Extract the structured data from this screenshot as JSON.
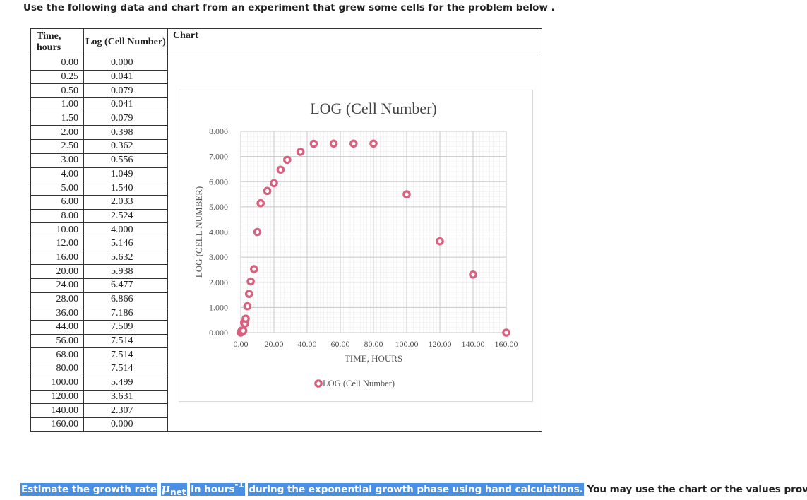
{
  "intro": "Use the following data and chart from an experiment that grew some cells for the problem below .",
  "table": {
    "headers": [
      "Time, hours",
      "Log (Cell Number)",
      "Chart"
    ],
    "rows": [
      [
        "0.00",
        "0.000"
      ],
      [
        "0.25",
        "0.041"
      ],
      [
        "0.50",
        "0.079"
      ],
      [
        "1.00",
        "0.041"
      ],
      [
        "1.50",
        "0.079"
      ],
      [
        "2.00",
        "0.398"
      ],
      [
        "2.50",
        "0.362"
      ],
      [
        "3.00",
        "0.556"
      ],
      [
        "4.00",
        "1.049"
      ],
      [
        "5.00",
        "1.540"
      ],
      [
        "6.00",
        "2.033"
      ],
      [
        "8.00",
        "2.524"
      ],
      [
        "10.00",
        "4.000"
      ],
      [
        "12.00",
        "5.146"
      ],
      [
        "16.00",
        "5.632"
      ],
      [
        "20.00",
        "5.938"
      ],
      [
        "24.00",
        "6.477"
      ],
      [
        "28.00",
        "6.866"
      ],
      [
        "36.00",
        "7.186"
      ],
      [
        "44.00",
        "7.509"
      ],
      [
        "56.00",
        "7.514"
      ],
      [
        "68.00",
        "7.514"
      ],
      [
        "80.00",
        "7.514"
      ],
      [
        "100.00",
        "5.499"
      ],
      [
        "120.00",
        "3.631"
      ],
      [
        "140.00",
        "2.307"
      ],
      [
        "160.00",
        "0.000"
      ]
    ]
  },
  "chart_data": {
    "type": "scatter",
    "title": "LOG (Cell Number)",
    "xlabel": "TIME, HOURS",
    "ylabel": "LOG (CELL NUMBER)",
    "xlim": [
      0,
      160
    ],
    "ylim": [
      0,
      8
    ],
    "x_ticks": [
      "0.00",
      "20.00",
      "40.00",
      "60.00",
      "80.00",
      "100.00",
      "120.00",
      "140.00",
      "160.00"
    ],
    "y_ticks": [
      "0.000",
      "1.000",
      "2.000",
      "3.000",
      "4.000",
      "5.000",
      "6.000",
      "7.000",
      "8.000"
    ],
    "grid": true,
    "legend_position": "bottom",
    "series": [
      {
        "name": "LOG (Cell Number)",
        "color": "#d9607f",
        "points": [
          [
            0,
            0.0
          ],
          [
            0.25,
            0.041
          ],
          [
            0.5,
            0.079
          ],
          [
            1,
            0.041
          ],
          [
            1.5,
            0.079
          ],
          [
            2,
            0.398
          ],
          [
            2.5,
            0.362
          ],
          [
            3,
            0.556
          ],
          [
            4,
            1.049
          ],
          [
            5,
            1.54
          ],
          [
            6,
            2.033
          ],
          [
            8,
            2.524
          ],
          [
            10,
            4.0
          ],
          [
            12,
            5.146
          ],
          [
            16,
            5.632
          ],
          [
            20,
            5.938
          ],
          [
            24,
            6.477
          ],
          [
            28,
            6.866
          ],
          [
            36,
            7.186
          ],
          [
            44,
            7.509
          ],
          [
            56,
            7.514
          ],
          [
            68,
            7.514
          ],
          [
            80,
            7.514
          ],
          [
            100,
            5.499
          ],
          [
            120,
            3.631
          ],
          [
            140,
            2.307
          ],
          [
            160,
            0.0
          ]
        ]
      }
    ]
  },
  "question": {
    "part1": "Estimate the growth rate",
    "mu": "μ",
    "mu_sub": "net",
    "part2": "in hours",
    "sup": "-1",
    "part3": "during the exponential growth phase using hand calculations.",
    "part4": "You may use the chart or the values provided. U"
  }
}
